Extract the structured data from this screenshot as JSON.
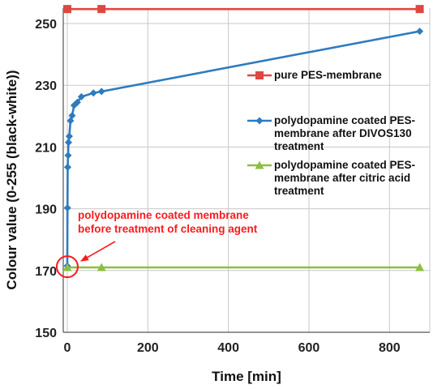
{
  "chart_data": {
    "type": "line",
    "xlabel": "Time [min]",
    "ylabel": "Colour value (0-255 (black-white))",
    "xlim": [
      -10,
      900
    ],
    "ylim": [
      150,
      255
    ],
    "xticks": [
      0,
      200,
      400,
      600,
      800
    ],
    "yticks": [
      150,
      170,
      190,
      210,
      230,
      250
    ],
    "grid": true,
    "legend_position": "right",
    "series": [
      {
        "name": "pure PES-membrane",
        "color": "#e0473f",
        "marker": "square",
        "x": [
          0,
          85,
          875
        ],
        "y": [
          254.7,
          254.7,
          254.7
        ]
      },
      {
        "name": "polydopamine coated PES-membrane after DIVOS130 treatment",
        "legend_lines": [
          "polydopamine coated PES-",
          "membrane after DIVOS130",
          "treatment"
        ],
        "color": "#2e7bbf",
        "marker": "diamond",
        "x": [
          0,
          0.5,
          1,
          2,
          3,
          5,
          8,
          12,
          17,
          25,
          35,
          65,
          85,
          875
        ],
        "y": [
          171.5,
          190.3,
          203.5,
          207.3,
          211.5,
          213.5,
          218.5,
          220.2,
          223.5,
          224.5,
          226.3,
          227.5,
          228.0,
          247.5
        ]
      },
      {
        "name": "polydopamine coated PES-membrane after citric acid treatment",
        "legend_lines": [
          "polydopamine coated PES-",
          "membrane after citric acid",
          "treatment"
        ],
        "color": "#8cbf3f",
        "marker": "triangle",
        "x": [
          0,
          85,
          875
        ],
        "y": [
          171.0,
          171.0,
          171.0
        ]
      }
    ],
    "annotation": {
      "lines": [
        "polydopamine coated membrane",
        "before treatment of cleaning agent"
      ],
      "color": "#ff1a1a",
      "target_x": 0,
      "target_y": 171.5
    }
  }
}
